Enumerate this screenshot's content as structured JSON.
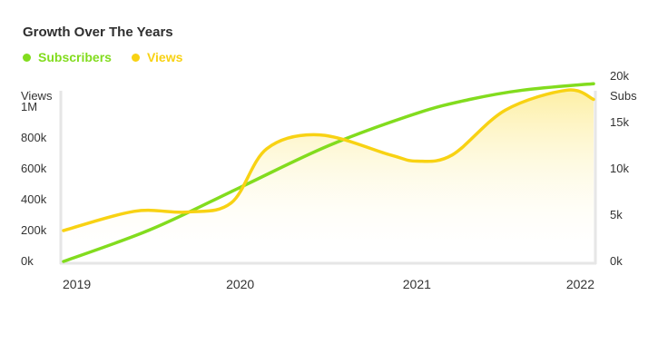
{
  "chart_data": {
    "type": "line",
    "title": "Growth Over The Years",
    "x": [
      2019,
      2019.5,
      2020,
      2020.5,
      2021,
      2021.5,
      2022
    ],
    "xlabels": [
      "2019",
      "2020",
      "2021",
      "2022"
    ],
    "xlim": [
      2019,
      2022
    ],
    "series": [
      {
        "name": "Subscribers",
        "axis": "right",
        "color": "#82dc1e",
        "x": [
          2019,
          2019.5,
          2020,
          2020.5,
          2021,
          2021.3,
          2021.6,
          2022
        ],
        "values": [
          0,
          3500,
          8000,
          12500,
          16000,
          17500,
          18500,
          19200
        ]
      },
      {
        "name": "Views",
        "axis": "left",
        "color": "#f8d213",
        "fill": true,
        "x": [
          2019,
          2019.4,
          2019.7,
          2019.95,
          2020.15,
          2020.45,
          2020.85,
          2021,
          2021.2,
          2021.5,
          2021.85,
          2022
        ],
        "values": [
          200000,
          325000,
          320000,
          380000,
          730000,
          820000,
          690000,
          650000,
          690000,
          980000,
          1110000,
          1050000
        ]
      }
    ],
    "left_axis": {
      "label": "Views",
      "ticks": [
        "0k",
        "200k",
        "400k",
        "600k",
        "800k",
        "1M"
      ],
      "tick_values": [
        0,
        200000,
        400000,
        600000,
        800000,
        1000000
      ],
      "range": [
        0,
        1200000
      ]
    },
    "right_axis": {
      "label": "Subs",
      "ticks": [
        "0k",
        "5k",
        "10k",
        "15k",
        "20k"
      ],
      "tick_values": [
        0,
        5000,
        10000,
        15000,
        20000
      ],
      "range": [
        0,
        20000
      ]
    },
    "legend_position": "top-left"
  }
}
